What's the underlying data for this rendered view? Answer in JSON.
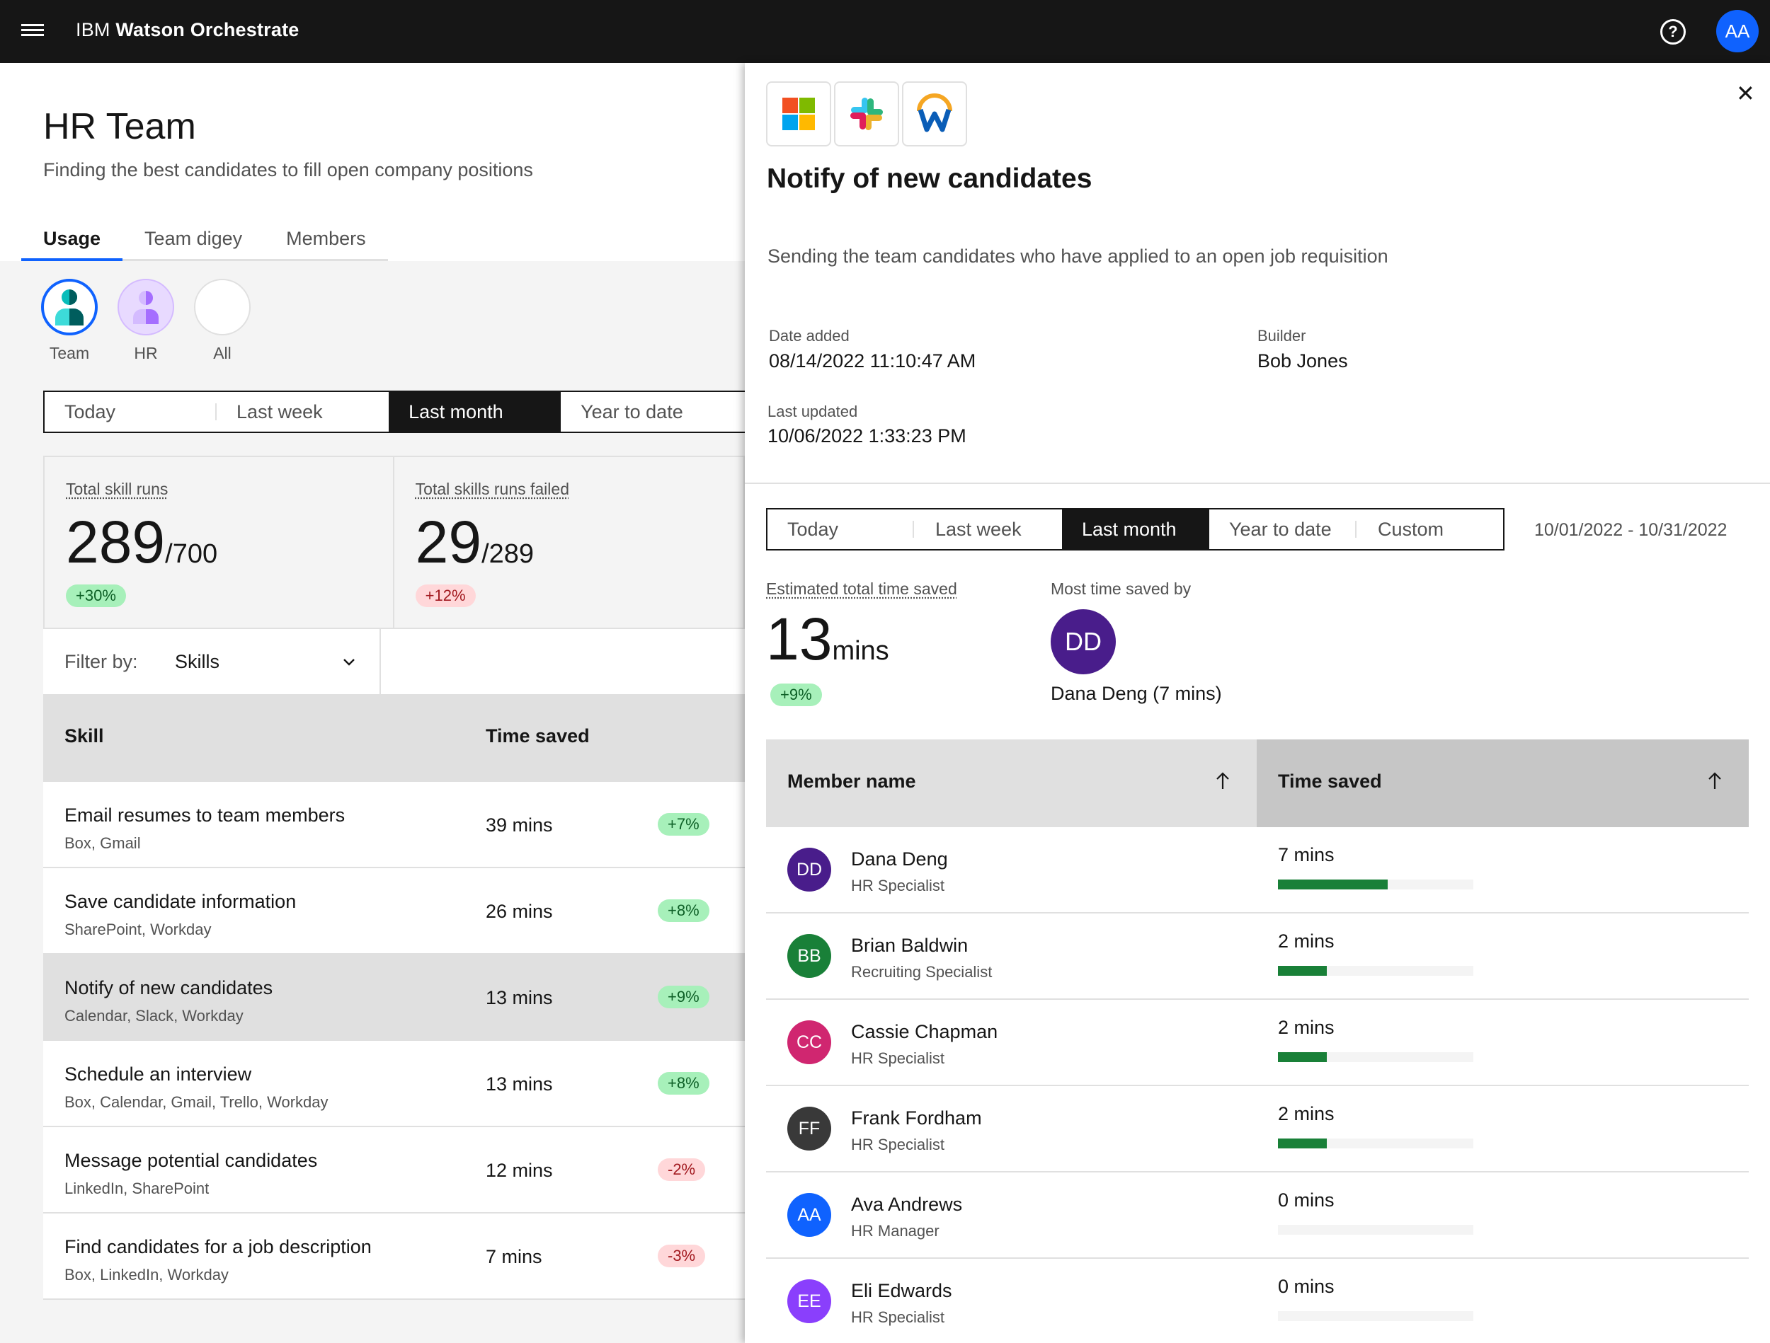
{
  "header": {
    "brand_prefix": "IBM",
    "brand_name": "Watson Orchestrate",
    "help_icon": "question-circle-icon",
    "user_initials": "AA"
  },
  "page": {
    "title": "HR Team",
    "subtitle": "Finding the best candidates to fill open company positions",
    "tabs": [
      "Usage",
      "Team digey",
      "Members"
    ],
    "active_tab": "Usage",
    "scopes": [
      "Team",
      "HR",
      "All"
    ],
    "timeframe": [
      "Today",
      "Last week",
      "Last month",
      "Year to date"
    ],
    "active_timeframe": "Last month"
  },
  "stats": [
    {
      "label": "Total skill runs",
      "value": "289",
      "of": "/700",
      "change": "+30%",
      "direction": "up"
    },
    {
      "label": "Total skills runs failed",
      "value": "29",
      "of": "/289",
      "change": "+12%",
      "direction": "down"
    }
  ],
  "filter": {
    "label": "Filter by:",
    "value": "Skills"
  },
  "skills_table": {
    "columns": [
      "Skill",
      "Time saved"
    ],
    "rows": [
      {
        "name": "Email resumes to team members",
        "apps": "Box, Gmail",
        "time": "39 mins",
        "change": "+7%",
        "direction": "up"
      },
      {
        "name": "Save candidate information",
        "apps": "SharePoint, Workday",
        "time": "26 mins",
        "change": "+8%",
        "direction": "up"
      },
      {
        "name": "Notify of new candidates",
        "apps": "Calendar, Slack, Workday",
        "time": "13 mins",
        "change": "+9%",
        "direction": "up",
        "selected": true
      },
      {
        "name": "Schedule an interview",
        "apps": "Box, Calendar, Gmail, Trello, Workday",
        "time": "13 mins",
        "change": "+8%",
        "direction": "up"
      },
      {
        "name": "Message potential candidates",
        "apps": "LinkedIn, SharePoint",
        "time": "12 mins",
        "change": "-2%",
        "direction": "down"
      },
      {
        "name": "Find candidates for a job description",
        "apps": "Box, LinkedIn, Workday",
        "time": "7 mins",
        "change": "-3%",
        "direction": "down"
      }
    ]
  },
  "panel": {
    "app_icons": [
      "microsoft-icon",
      "slack-icon",
      "workday-icon"
    ],
    "title": "Notify of new candidates",
    "description": "Sending the team candidates who have applied to an open job requisition",
    "date_added_label": "Date added",
    "date_added": "08/14/2022  11:10:47 AM",
    "builder_label": "Builder",
    "builder": "Bob Jones",
    "last_updated_label": "Last updated",
    "last_updated": "10/06/2022  1:33:23 PM",
    "timeframe": [
      "Today",
      "Last week",
      "Last month",
      "Year to date",
      "Custom"
    ],
    "active_timeframe": "Last month",
    "date_range": "10/01/2022 - 10/31/2022",
    "est_label": "Estimated total time saved",
    "est_value": "13",
    "est_unit": "mins",
    "est_change": "+9%",
    "most_label": "Most time saved by",
    "most_initials": "DD",
    "most_name": "Dana Deng (7 mins)",
    "members_columns": [
      "Member name",
      "Time saved"
    ],
    "members": [
      {
        "initials": "DD",
        "name": "Dana Deng",
        "role": "HR Specialist",
        "time": "7 mins",
        "progress": 0.56,
        "color": "#491d8b"
      },
      {
        "initials": "BB",
        "name": "Brian Baldwin",
        "role": "Recruiting Specialist",
        "time": "2 mins",
        "progress": 0.25,
        "color": "#198038"
      },
      {
        "initials": "CC",
        "name": "Cassie Chapman",
        "role": "HR Specialist",
        "time": "2 mins",
        "progress": 0.25,
        "color": "#d02670"
      },
      {
        "initials": "FF",
        "name": "Frank Fordham",
        "role": "HR Specialist",
        "time": "2 mins",
        "progress": 0.25,
        "color": "#393939"
      },
      {
        "initials": "AA",
        "name": "Ava Andrews",
        "role": "HR Manager",
        "time": "0 mins",
        "progress": 0,
        "color": "#0f62fe"
      },
      {
        "initials": "EE",
        "name": "Eli Edwards",
        "role": "HR Specialist",
        "time": "0 mins",
        "progress": 0,
        "color": "#8a3ffc"
      }
    ]
  }
}
